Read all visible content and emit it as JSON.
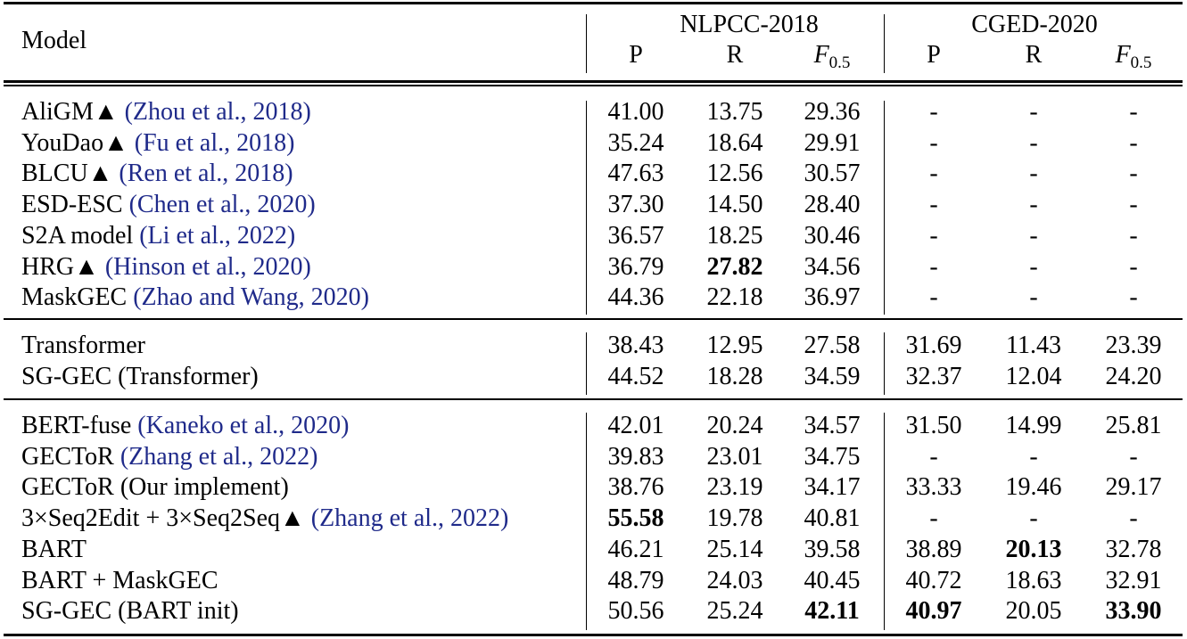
{
  "header": {
    "model_label": "Model",
    "groups": [
      {
        "name": "NLPCC-2018",
        "columns": [
          "P",
          "R",
          "F0.5"
        ]
      },
      {
        "name": "CGED-2020",
        "columns": [
          "P",
          "R",
          "F0.5"
        ]
      }
    ],
    "metric_F_letter": "F",
    "metric_F_sub": "0.5"
  },
  "sections": [
    [
      {
        "name": "AliGM▲ ",
        "cite": "(Zhou et al., 2018)",
        "values": [
          "41.00",
          "13.75",
          "29.36",
          "-",
          "-",
          "-"
        ],
        "bold": []
      },
      {
        "name": "YouDao▲ ",
        "cite": "(Fu et al., 2018)",
        "values": [
          "35.24",
          "18.64",
          "29.91",
          "-",
          "-",
          "-"
        ],
        "bold": []
      },
      {
        "name": "BLCU▲ ",
        "cite": "(Ren et al., 2018)",
        "values": [
          "47.63",
          "12.56",
          "30.57",
          "-",
          "-",
          "-"
        ],
        "bold": []
      },
      {
        "name": "ESD-ESC ",
        "cite": "(Chen et al., 2020)",
        "values": [
          "37.30",
          "14.50",
          "28.40",
          "-",
          "-",
          "-"
        ],
        "bold": []
      },
      {
        "name": "S2A model ",
        "cite": "(Li et al., 2022)",
        "values": [
          "36.57",
          "18.25",
          "30.46",
          "-",
          "-",
          "-"
        ],
        "bold": []
      },
      {
        "name": "HRG▲ ",
        "cite": "(Hinson et al., 2020)",
        "values": [
          "36.79",
          "27.82",
          "34.56",
          "-",
          "-",
          "-"
        ],
        "bold": [
          1
        ]
      },
      {
        "name": "MaskGEC ",
        "cite": "(Zhao and Wang, 2020)",
        "values": [
          "44.36",
          "22.18",
          "36.97",
          "-",
          "-",
          "-"
        ],
        "bold": []
      }
    ],
    [
      {
        "name": "Transformer",
        "cite": "",
        "values": [
          "38.43",
          "12.95",
          "27.58",
          "31.69",
          "11.43",
          "23.39"
        ],
        "bold": []
      },
      {
        "name": "SG-GEC (Transformer)",
        "cite": "",
        "values": [
          "44.52",
          "18.28",
          "34.59",
          "32.37",
          "12.04",
          "24.20"
        ],
        "bold": []
      }
    ],
    [
      {
        "name": "BERT-fuse ",
        "cite": "(Kaneko et al., 2020)",
        "values": [
          "42.01",
          "20.24",
          "34.57",
          "31.50",
          "14.99",
          "25.81"
        ],
        "bold": []
      },
      {
        "name": "GECToR ",
        "cite": "(Zhang et al., 2022)",
        "values": [
          "39.83",
          "23.01",
          "34.75",
          "-",
          "-",
          "-"
        ],
        "bold": []
      },
      {
        "name": "GECToR (Our implement)",
        "cite": "",
        "values": [
          "38.76",
          "23.19",
          "34.17",
          "33.33",
          "19.46",
          "29.17"
        ],
        "bold": []
      },
      {
        "name": "3×Seq2Edit + 3×Seq2Seq▲ ",
        "cite": "(Zhang et al., 2022)",
        "values": [
          "55.58",
          "19.78",
          "40.81",
          "-",
          "-",
          "-"
        ],
        "bold": [
          0
        ]
      },
      {
        "name": "BART",
        "cite": "",
        "values": [
          "46.21",
          "25.14",
          "39.58",
          "38.89",
          "20.13",
          "32.78"
        ],
        "bold": [
          4
        ]
      },
      {
        "name": "BART + MaskGEC",
        "cite": "",
        "values": [
          "48.79",
          "24.03",
          "40.45",
          "40.72",
          "18.63",
          "32.91"
        ],
        "bold": []
      },
      {
        "name": "SG-GEC (BART init)",
        "cite": "",
        "values": [
          "50.56",
          "25.24",
          "42.11",
          "40.97",
          "20.05",
          "33.90"
        ],
        "bold": [
          2,
          3,
          5
        ]
      }
    ]
  ]
}
